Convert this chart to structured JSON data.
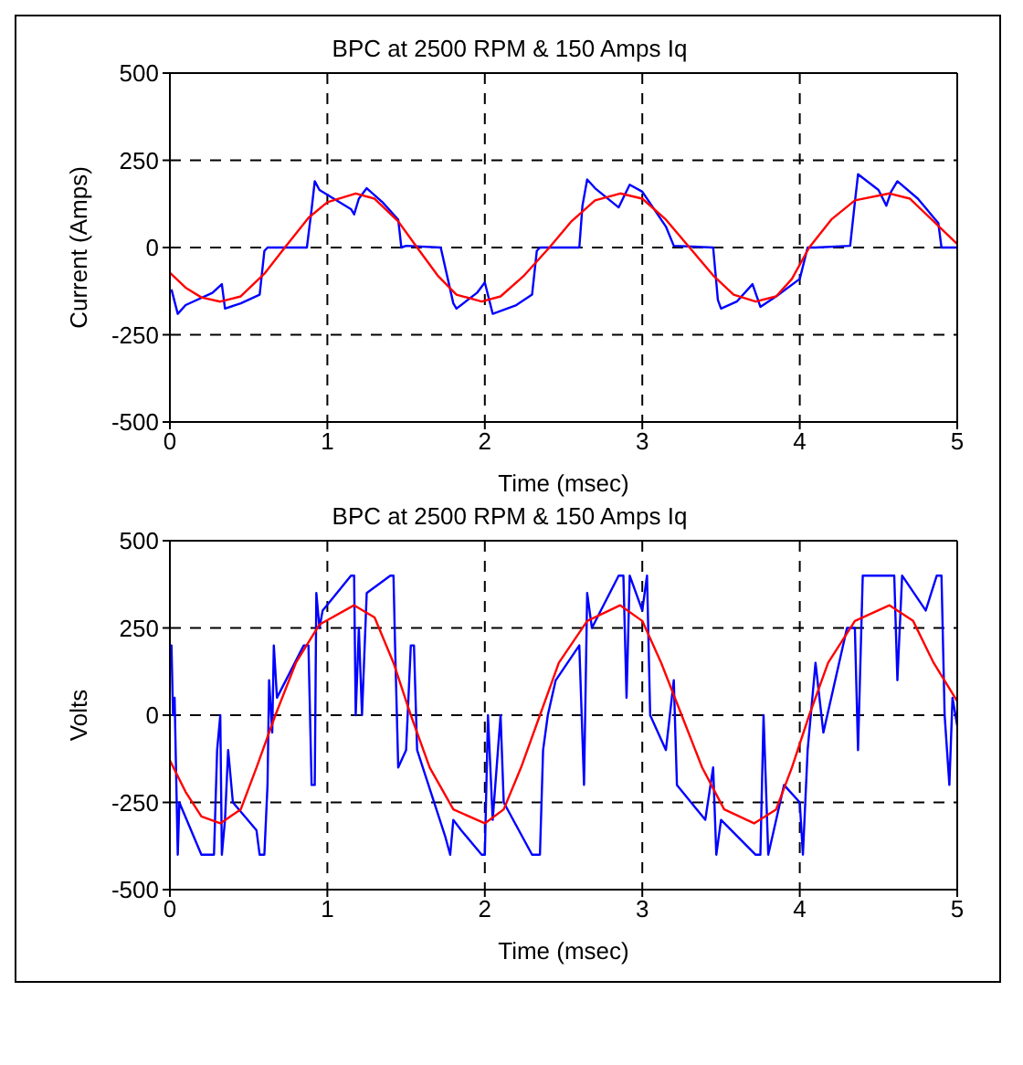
{
  "chart_data": [
    {
      "type": "line",
      "title": "BPC at 2500 RPM & 150 Amps Iq",
      "xlabel": "Time (msec)",
      "ylabel": "Current (Amps)",
      "xlim": [
        0,
        5
      ],
      "xticks": [
        0,
        1,
        2,
        3,
        4,
        5
      ],
      "ylim": [
        -500,
        500
      ],
      "yticks": [
        -500,
        -250,
        0,
        250,
        500
      ],
      "grid": true,
      "series": [
        {
          "color": "#0000ff",
          "x": [
            0.01,
            0.05,
            0.1,
            0.27,
            0.33,
            0.35,
            0.45,
            0.57,
            0.6,
            0.62,
            0.87,
            0.9,
            0.92,
            0.95,
            1.15,
            1.17,
            1.2,
            1.25,
            1.35,
            1.45,
            1.47,
            1.5,
            1.72,
            1.8,
            1.82,
            1.95,
            2.0,
            2.05,
            2.2,
            2.3,
            2.33,
            2.35,
            2.6,
            2.62,
            2.65,
            2.7,
            2.85,
            2.92,
            3.0,
            3.15,
            3.2,
            3.45,
            3.48,
            3.5,
            3.6,
            3.7,
            3.75,
            3.85,
            4.0,
            4.05,
            4.1,
            4.32,
            4.35,
            4.37,
            4.5,
            4.55,
            4.58,
            4.62,
            4.75,
            4.88,
            4.9,
            5.0
          ],
          "values": [
            -120,
            -190,
            -165,
            -130,
            -105,
            -175,
            -160,
            -135,
            -10,
            0,
            0,
            110,
            190,
            165,
            110,
            95,
            140,
            170,
            130,
            80,
            0,
            5,
            0,
            -160,
            -175,
            -130,
            -100,
            -190,
            -165,
            -135,
            -10,
            0,
            0,
            120,
            195,
            170,
            115,
            180,
            160,
            60,
            5,
            0,
            -150,
            -175,
            -155,
            -105,
            -170,
            -140,
            -90,
            0,
            0,
            5,
            130,
            210,
            165,
            120,
            160,
            190,
            140,
            70,
            0,
            0
          ]
        },
        {
          "color": "#ff0000",
          "x": [
            0,
            0.1,
            0.2,
            0.32,
            0.45,
            0.6,
            0.73,
            0.88,
            1.0,
            1.18,
            1.3,
            1.45,
            1.57,
            1.7,
            1.82,
            1.98,
            2.1,
            2.25,
            2.41,
            2.55,
            2.7,
            2.86,
            3.0,
            3.15,
            3.3,
            3.45,
            3.58,
            3.72,
            3.85,
            3.95,
            4.06,
            4.2,
            4.35,
            4.57,
            4.7,
            4.85,
            5.0
          ],
          "values": [
            -72,
            -115,
            -143,
            -155,
            -140,
            -75,
            0,
            85,
            130,
            155,
            140,
            75,
            0,
            -80,
            -135,
            -155,
            -140,
            -80,
            0,
            75,
            135,
            155,
            140,
            80,
            0,
            -80,
            -135,
            -155,
            -140,
            -90,
            0,
            80,
            135,
            155,
            140,
            75,
            10
          ]
        }
      ]
    },
    {
      "type": "line",
      "title": "BPC at 2500 RPM & 150 Amps Iq",
      "xlabel": "Time (msec)",
      "ylabel": "Volts",
      "xlim": [
        0,
        5
      ],
      "xticks": [
        0,
        1,
        2,
        3,
        4,
        5
      ],
      "ylim": [
        -500,
        500
      ],
      "yticks": [
        -500,
        -250,
        0,
        250,
        500
      ],
      "grid": true,
      "series": [
        {
          "color": "#0000ff",
          "x": [
            0,
            0.01,
            0.02,
            0.03,
            0.05,
            0.06,
            0.2,
            0.28,
            0.3,
            0.32,
            0.33,
            0.35,
            0.37,
            0.4,
            0.55,
            0.57,
            0.6,
            0.62,
            0.63,
            0.65,
            0.66,
            0.68,
            0.85,
            0.88,
            0.9,
            0.92,
            0.93,
            0.95,
            0.97,
            1.15,
            1.17,
            1.18,
            1.2,
            1.22,
            1.25,
            1.4,
            1.42,
            1.43,
            1.45,
            1.5,
            1.53,
            1.55,
            1.57,
            1.75,
            1.78,
            1.8,
            1.85,
            1.98,
            2.0,
            2.02,
            2.05,
            2.1,
            2.12,
            2.3,
            2.35,
            2.37,
            2.4,
            2.45,
            2.6,
            2.63,
            2.65,
            2.68,
            2.85,
            2.88,
            2.9,
            2.92,
            3.0,
            3.03,
            3.05,
            3.15,
            3.2,
            3.22,
            3.4,
            3.45,
            3.47,
            3.5,
            3.72,
            3.75,
            3.77,
            3.8,
            3.9,
            4.0,
            4.02,
            4.05,
            4.1,
            4.15,
            4.3,
            4.35,
            4.37,
            4.4,
            4.55,
            4.6,
            4.62,
            4.65,
            4.8,
            4.87,
            4.9,
            4.92,
            4.95,
            4.97,
            5.0
          ],
          "values": [
            200,
            200,
            0,
            50,
            -400,
            -250,
            -400,
            -400,
            -100,
            0,
            -400,
            -300,
            -100,
            -250,
            -330,
            -400,
            -400,
            -200,
            100,
            -50,
            200,
            50,
            200,
            200,
            -200,
            -200,
            350,
            250,
            300,
            400,
            400,
            0,
            250,
            0,
            350,
            400,
            400,
            200,
            -150,
            -100,
            200,
            200,
            -100,
            -350,
            -400,
            -300,
            -330,
            -400,
            -400,
            0,
            -300,
            0,
            -250,
            -400,
            -400,
            -100,
            0,
            100,
            200,
            -200,
            350,
            250,
            400,
            400,
            50,
            400,
            300,
            400,
            0,
            -100,
            100,
            -200,
            -300,
            -150,
            -400,
            -300,
            -400,
            -400,
            0,
            -400,
            -200,
            -250,
            -400,
            -100,
            150,
            -50,
            250,
            250,
            -100,
            400,
            400,
            400,
            100,
            400,
            300,
            400,
            400,
            0,
            -200,
            50,
            -30
          ]
        },
        {
          "color": "#ff0000",
          "x": [
            0,
            0.1,
            0.2,
            0.32,
            0.45,
            0.55,
            0.67,
            0.8,
            0.95,
            1.17,
            1.3,
            1.42,
            1.53,
            1.65,
            1.8,
            2.0,
            2.12,
            2.23,
            2.35,
            2.47,
            2.65,
            2.86,
            3.0,
            3.12,
            3.25,
            3.38,
            3.52,
            3.71,
            3.85,
            3.95,
            4.06,
            4.18,
            4.35,
            4.57,
            4.72,
            4.85,
            5.0
          ],
          "values": [
            -130,
            -220,
            -290,
            -310,
            -270,
            -150,
            0,
            150,
            260,
            315,
            280,
            150,
            0,
            -150,
            -270,
            -310,
            -270,
            -150,
            0,
            150,
            270,
            315,
            270,
            150,
            0,
            -150,
            -270,
            -310,
            -270,
            -150,
            0,
            150,
            270,
            315,
            270,
            150,
            40
          ]
        }
      ]
    }
  ]
}
